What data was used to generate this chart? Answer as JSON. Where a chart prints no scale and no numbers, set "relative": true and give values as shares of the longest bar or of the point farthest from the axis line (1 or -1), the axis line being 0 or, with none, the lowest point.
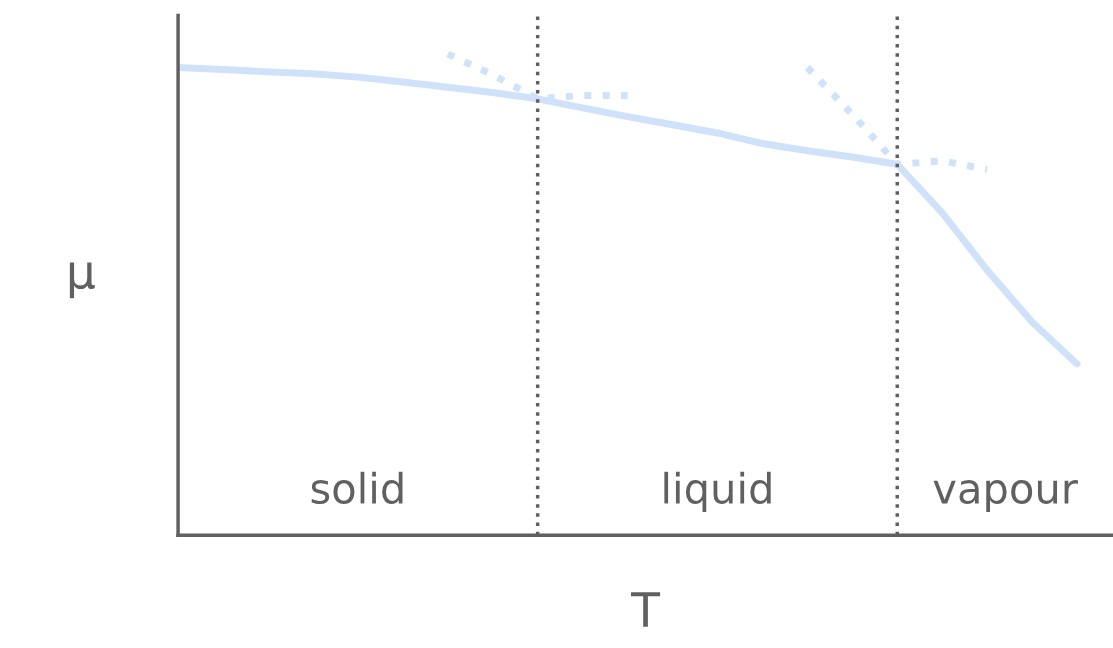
{
  "chart_data": {
    "type": "line",
    "relative": true,
    "xlabel": "T",
    "ylabel": "μ",
    "legend": false,
    "marker": "none",
    "categories": [
      null,
      null,
      null,
      null,
      null,
      null,
      null,
      null,
      null,
      null,
      null,
      null,
      null,
      null,
      null,
      null,
      null,
      null,
      null,
      null,
      null
    ],
    "series": [
      {
        "color": "#cfe2f9",
        "line_style": "solid",
        "values": [
          0.972,
          0.968,
          0.963,
          0.959,
          0.952,
          0.942,
          0.931,
          0.92,
          0.907,
          0.888,
          0.87,
          0.853,
          0.836,
          0.814,
          0.799,
          0.786,
          0.771,
          0.67,
          0.551,
          0.443,
          0.356
        ]
      },
      {
        "color": "#cfe2f9",
        "line_style": "dotted",
        "values": [
          null,
          null,
          null,
          null,
          null,
          null,
          1.0,
          0.957,
          0.907,
          0.914,
          0.914,
          null,
          null,
          null,
          null,
          null,
          null,
          null,
          null,
          null,
          null
        ]
      },
      {
        "color": "#cfe2f9",
        "line_style": "dotted",
        "values": [
          null,
          null,
          null,
          null,
          null,
          null,
          null,
          null,
          null,
          null,
          null,
          null,
          null,
          null,
          0.972,
          0.875,
          0.771,
          0.778,
          0.76,
          null,
          null
        ]
      }
    ],
    "annotations": [
      "solid",
      "liquid",
      "vapour"
    ]
  }
}
